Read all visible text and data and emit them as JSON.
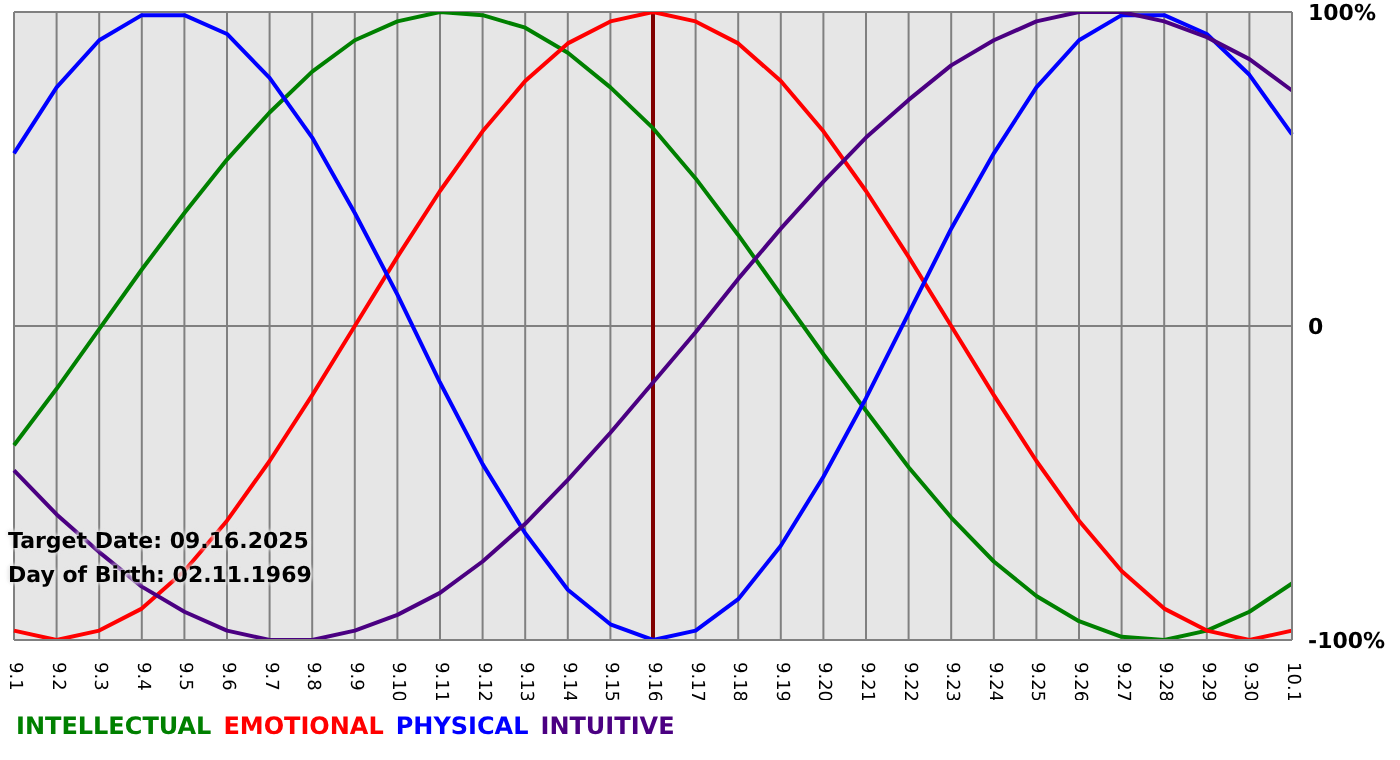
{
  "chart_data": {
    "type": "line",
    "categories": [
      "9.1",
      "9.2",
      "9.3",
      "9.4",
      "9.5",
      "9.6",
      "9.7",
      "9.8",
      "9.9",
      "9.10",
      "9.11",
      "9.12",
      "9.13",
      "9.14",
      "9.15",
      "9.16",
      "9.17",
      "9.18",
      "9.19",
      "9.20",
      "9.21",
      "9.22",
      "9.23",
      "9.24",
      "9.25",
      "9.26",
      "9.27",
      "9.28",
      "9.29",
      "9.30",
      "10.1"
    ],
    "series": [
      {
        "name": "INTELLECTUAL",
        "color": "#008000",
        "values": [
          -38,
          -20,
          -1,
          18,
          36,
          53,
          68,
          81,
          91,
          97,
          100,
          99,
          95,
          87,
          76,
          63,
          47,
          29,
          10,
          -9,
          -27,
          -45,
          -61,
          -75,
          -86,
          -94,
          -99,
          -100,
          -97,
          -91,
          -82
        ]
      },
      {
        "name": "EMOTIONAL",
        "color": "#ff0000",
        "values": [
          -97,
          -100,
          -97,
          -90,
          -78,
          -62,
          -43,
          -22,
          0,
          22,
          43,
          62,
          78,
          90,
          97,
          100,
          97,
          90,
          78,
          62,
          43,
          22,
          0,
          -22,
          -43,
          -62,
          -78,
          -90,
          -97,
          -100,
          -97
        ]
      },
      {
        "name": "PHYSICAL",
        "color": "#0000ff",
        "values": [
          55,
          76,
          91,
          99,
          99,
          93,
          79,
          60,
          36,
          10,
          -18,
          -44,
          -66,
          -84,
          -95,
          -100,
          -97,
          -87,
          -70,
          -48,
          -23,
          4,
          31,
          55,
          76,
          91,
          99,
          99,
          93,
          80,
          61
        ]
      },
      {
        "name": "INTUITIVE",
        "color": "#4b0082",
        "values": [
          -46,
          -60,
          -72,
          -83,
          -91,
          -97,
          -100,
          -100,
          -97,
          -92,
          -85,
          -75,
          -63,
          -49,
          -34,
          -18,
          -2,
          15,
          31,
          46,
          60,
          72,
          83,
          91,
          97,
          100,
          100,
          97,
          92,
          85,
          75
        ]
      }
    ],
    "ylim": [
      -100,
      100
    ],
    "yticks": [
      {
        "value": 100,
        "label": "100%"
      },
      0,
      {
        "value": -100,
        "label": "-100%"
      }
    ],
    "grid": true,
    "marker": "none",
    "legend": "bottom",
    "ref_lines": [
      {
        "axis": "x",
        "value": "9.16",
        "color": "#800000"
      }
    ],
    "annotations": [
      "Target Date: 09.16.2025",
      "Day of Birth: 02.11.1969"
    ]
  }
}
